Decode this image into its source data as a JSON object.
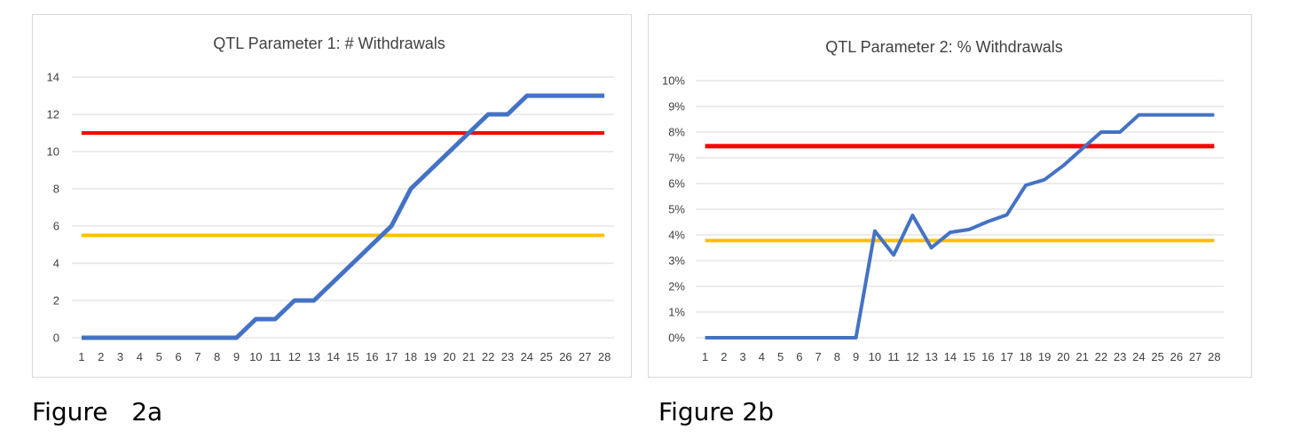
{
  "chart_data": [
    {
      "type": "line",
      "title": "QTL Parameter 1: # Withdrawals",
      "xlabel": "",
      "ylabel": "",
      "ylim": [
        0,
        14
      ],
      "ytick_labels": [
        "0",
        "2",
        "4",
        "6",
        "8",
        "10",
        "12",
        "14"
      ],
      "categories": [
        "1",
        "2",
        "3",
        "4",
        "5",
        "6",
        "7",
        "8",
        "9",
        "10",
        "11",
        "12",
        "13",
        "14",
        "15",
        "16",
        "17",
        "18",
        "19",
        "20",
        "21",
        "22",
        "23",
        "24",
        "25",
        "26",
        "27",
        "28"
      ],
      "series": [
        {
          "values": [
            0,
            0,
            0,
            0,
            0,
            0,
            0,
            0,
            0,
            1,
            1,
            2,
            2,
            3,
            4,
            5,
            6,
            8,
            9,
            10,
            11,
            12,
            12,
            13,
            13,
            13,
            13,
            13
          ],
          "color": "#4472c4"
        },
        {
          "values": [
            11,
            11,
            11,
            11,
            11,
            11,
            11,
            11,
            11,
            11,
            11,
            11,
            11,
            11,
            11,
            11,
            11,
            11,
            11,
            11,
            11,
            11,
            11,
            11,
            11,
            11,
            11,
            11
          ],
          "color": "#ff0000"
        },
        {
          "values": [
            5.5,
            5.5,
            5.5,
            5.5,
            5.5,
            5.5,
            5.5,
            5.5,
            5.5,
            5.5,
            5.5,
            5.5,
            5.5,
            5.5,
            5.5,
            5.5,
            5.5,
            5.5,
            5.5,
            5.5,
            5.5,
            5.5,
            5.5,
            5.5,
            5.5,
            5.5,
            5.5,
            5.5
          ],
          "color": "#ffc000"
        }
      ],
      "grid": true,
      "legend": "none"
    },
    {
      "type": "line",
      "title": "QTL Parameter 2: % Withdrawals",
      "xlabel": "",
      "ylabel": "",
      "ylim": [
        0,
        10
      ],
      "ytick_labels": [
        "0%",
        "1%",
        "2%",
        "3%",
        "4%",
        "5%",
        "6%",
        "7%",
        "8%",
        "9%",
        "10%"
      ],
      "categories": [
        "1",
        "2",
        "3",
        "4",
        "5",
        "6",
        "7",
        "8",
        "9",
        "10",
        "11",
        "12",
        "13",
        "14",
        "15",
        "16",
        "17",
        "18",
        "19",
        "20",
        "21",
        "22",
        "23",
        "24",
        "25",
        "26",
        "27",
        "28"
      ],
      "series": [
        {
          "values": [
            0,
            0,
            0,
            0,
            0,
            0,
            0,
            0,
            0,
            4.15,
            3.22,
            4.76,
            3.5,
            4.1,
            4.21,
            4.52,
            4.78,
            5.93,
            6.15,
            6.7,
            7.35,
            8.0,
            8.0,
            8.67,
            8.67,
            8.67,
            8.67,
            8.67
          ],
          "color": "#4472c4"
        },
        {
          "values": [
            7.45,
            7.45,
            7.45,
            7.45,
            7.45,
            7.45,
            7.45,
            7.45,
            7.45,
            7.45,
            7.45,
            7.45,
            7.45,
            7.45,
            7.45,
            7.45,
            7.45,
            7.45,
            7.45,
            7.45,
            7.45,
            7.45,
            7.45,
            7.45,
            7.45,
            7.45,
            7.45,
            7.45
          ],
          "color": "#ff0000"
        },
        {
          "values": [
            3.78,
            3.78,
            3.78,
            3.78,
            3.78,
            3.78,
            3.78,
            3.78,
            3.78,
            3.78,
            3.78,
            3.78,
            3.78,
            3.78,
            3.78,
            3.78,
            3.78,
            3.78,
            3.78,
            3.78,
            3.78,
            3.78,
            3.78,
            3.78,
            3.78,
            3.78,
            3.78,
            3.78
          ],
          "color": "#ffc000"
        }
      ],
      "grid": true,
      "legend": "none"
    }
  ],
  "captions": {
    "a": "Figure   2a",
    "b": "Figure 2b"
  }
}
